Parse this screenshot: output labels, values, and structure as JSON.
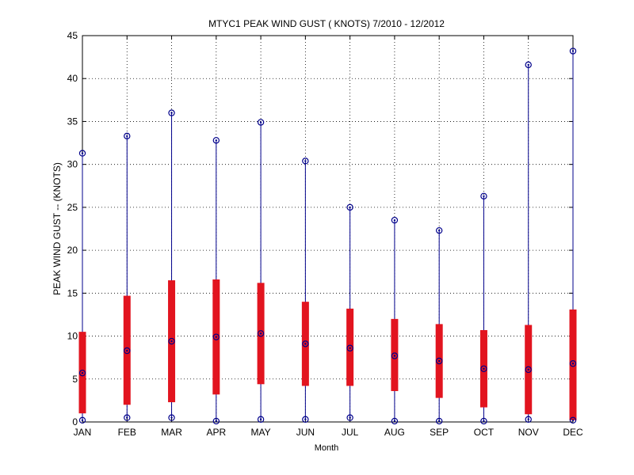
{
  "chart_data": {
    "type": "box",
    "title": "MTYC1  PEAK WIND GUST ( KNOTS) 7/2010 - 12/2012",
    "xlabel": "Month",
    "ylabel": "PEAK WIND GUST -- (KNOTS)",
    "ylim": [
      0,
      45
    ],
    "yticks": [
      0,
      5,
      10,
      15,
      20,
      25,
      30,
      35,
      40,
      45
    ],
    "grid": true,
    "categories": [
      "JAN",
      "FEB",
      "MAR",
      "APR",
      "MAY",
      "JUN",
      "JUL",
      "AUG",
      "SEP",
      "OCT",
      "NOV",
      "DEC"
    ],
    "min": [
      0.2,
      0.5,
      0.5,
      0.1,
      0.3,
      0.3,
      0.5,
      0.1,
      0.1,
      0.1,
      0.3,
      0.2
    ],
    "q1": [
      1.0,
      2.0,
      2.3,
      3.2,
      4.4,
      4.2,
      4.2,
      3.6,
      2.8,
      1.7,
      0.9,
      0.2
    ],
    "median": [
      5.7,
      8.3,
      9.4,
      9.9,
      10.3,
      9.1,
      8.6,
      7.7,
      7.1,
      6.2,
      6.1,
      6.8
    ],
    "q3": [
      10.5,
      14.7,
      16.5,
      16.6,
      16.2,
      14.0,
      13.2,
      12.0,
      11.4,
      10.7,
      11.3,
      13.1
    ],
    "max": [
      31.3,
      33.3,
      36.0,
      32.8,
      34.9,
      30.4,
      25.0,
      23.5,
      22.3,
      26.3,
      41.6,
      43.2
    ],
    "colors": {
      "box": "#e2141f",
      "whisker": "#00008b",
      "marker": "#00008b"
    }
  }
}
